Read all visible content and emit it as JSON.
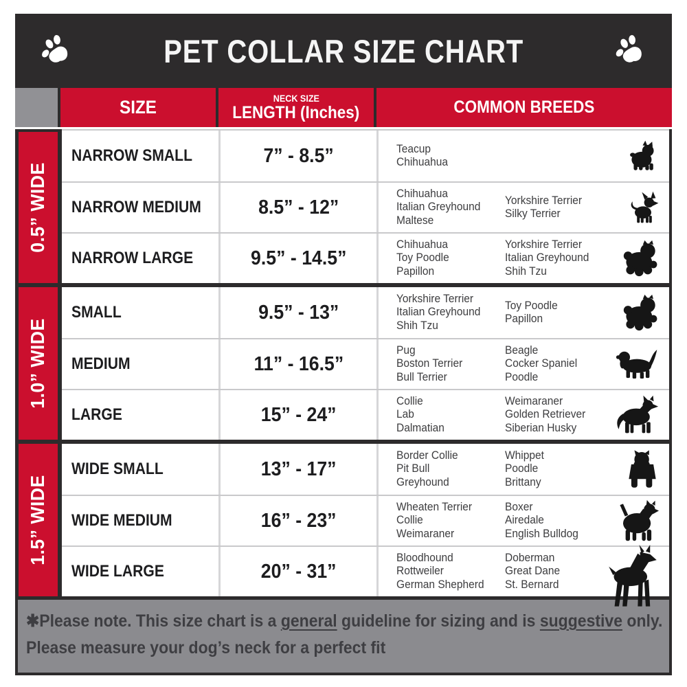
{
  "title": "PET COLLAR SIZE CHART",
  "colors": {
    "accent_red": "#cb0f2e",
    "bar_dark": "#2d2b2c",
    "corner_gray": "#919195",
    "footer_gray": "#8b8b8f",
    "silhouette_black": "#161616"
  },
  "header": {
    "size": "SIZE",
    "neck_line1": "NECK SIZE",
    "neck_line2": "LENGTH (Inches)",
    "breeds": "COMMON BREEDS"
  },
  "groups": [
    {
      "width_label": "0.5” WIDE",
      "rows": [
        {
          "size": "NARROW SMALL",
          "range": "7” - 8.5”",
          "breeds_left": [
            "Teacup",
            "Chihuahua"
          ],
          "breeds_right": [],
          "icon": "yorkshire-terrier-icon"
        },
        {
          "size": "NARROW MEDIUM",
          "range": "8.5” - 12”",
          "breeds_left": [
            "Chihuahua",
            "Italian Greyhound",
            "Maltese"
          ],
          "breeds_right": [
            "Yorkshire Terrier",
            "Silky Terrier"
          ],
          "icon": "chihuahua-icon"
        },
        {
          "size": "NARROW LARGE",
          "range": "9.5” - 14.5”",
          "breeds_left": [
            "Chihuahua",
            "Toy Poodle",
            "Papillon"
          ],
          "breeds_right": [
            "Yorkshire Terrier",
            "Italian Greyhound",
            "Shih Tzu"
          ],
          "icon": "shih-tzu-icon"
        }
      ]
    },
    {
      "width_label": "1.0” WIDE",
      "rows": [
        {
          "size": "SMALL",
          "range": "9.5” - 13”",
          "breeds_left": [
            "Yorkshire Terrier",
            "Italian Greyhound",
            "Shih Tzu"
          ],
          "breeds_right": [
            "Toy Poodle",
            "Papillon"
          ],
          "icon": "shih-tzu-icon"
        },
        {
          "size": "MEDIUM",
          "range": "11” - 16.5”",
          "breeds_left": [
            "Pug",
            "Boston Terrier",
            "Bull Terrier"
          ],
          "breeds_right": [
            "Beagle",
            "Cocker Spaniel",
            "Poodle"
          ],
          "icon": "beagle-icon"
        },
        {
          "size": "LARGE",
          "range": "15” - 24”",
          "breeds_left": [
            "Collie",
            "Lab",
            "Dalmatian"
          ],
          "breeds_right": [
            "Weimaraner",
            "Golden Retriever",
            "Siberian Husky"
          ],
          "icon": "husky-icon"
        }
      ]
    },
    {
      "width_label": "1.5” WIDE",
      "rows": [
        {
          "size": "WIDE SMALL",
          "range": "13” - 17”",
          "breeds_left": [
            "Border Collie",
            "Pit Bull",
            "Greyhound"
          ],
          "breeds_right": [
            "Whippet",
            "Poodle",
            "Brittany"
          ],
          "icon": "pit-bull-front-icon"
        },
        {
          "size": "WIDE MEDIUM",
          "range": "16” - 23”",
          "breeds_left": [
            "Wheaten Terrier",
            "Collie",
            "Weimaraner"
          ],
          "breeds_right": [
            "Boxer",
            "Airedale",
            "English Bulldog"
          ],
          "icon": "pit-bull-icon"
        },
        {
          "size": "WIDE LARGE",
          "range": "20” - 31”",
          "breeds_left": [
            "Bloodhound",
            "Rottweiler",
            "German Shepherd"
          ],
          "breeds_right": [
            "Doberman",
            "Great Dane",
            "St. Bernard"
          ],
          "icon": "doberman-icon"
        }
      ]
    }
  ],
  "footer": {
    "line1_parts": [
      {
        "text": "✱Please note. This size chart is a "
      },
      {
        "text": "general",
        "underline": true
      },
      {
        "text": " guideline for sizing and is "
      },
      {
        "text": "suggestive",
        "underline": true
      },
      {
        "text": " only."
      }
    ],
    "line2": "Please measure your dog’s neck for a perfect fit"
  }
}
